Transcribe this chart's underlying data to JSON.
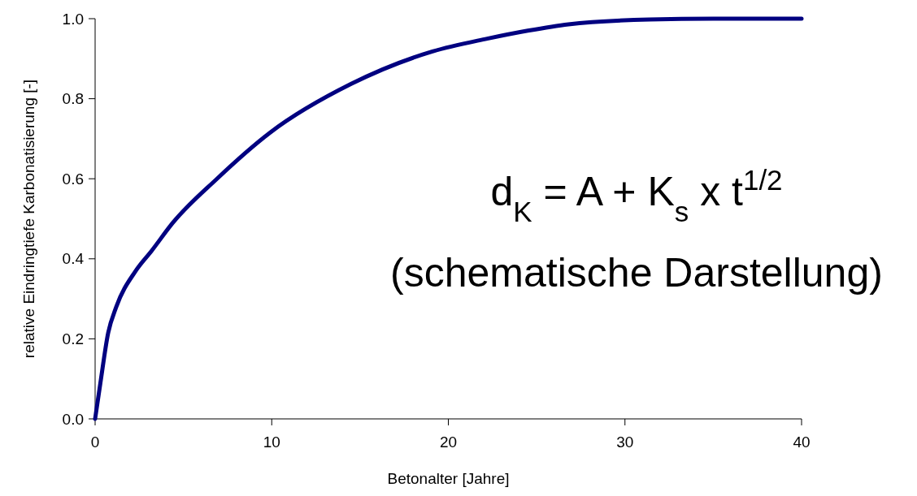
{
  "chart_data": {
    "type": "line",
    "xlabel": "Betonalter [Jahre]",
    "ylabel": "relative Eindringtiefe Karbonatisierung [-]",
    "xlim": [
      0,
      40
    ],
    "ylim": [
      0,
      1
    ],
    "xticks": [
      0,
      10,
      20,
      30,
      40
    ],
    "yticks": [
      {
        "value": 0,
        "label": "0.0"
      },
      {
        "value": 0.2,
        "label": "0.2"
      },
      {
        "value": 0.4,
        "label": "0.4"
      },
      {
        "value": 0.6,
        "label": "0.6"
      },
      {
        "value": 0.8,
        "label": "0.8"
      },
      {
        "value": 1,
        "label": "1.0"
      }
    ],
    "grid": false,
    "marker": "none",
    "line_style": "solid",
    "annotations": [
      "d$_{K}$ = A + K$_{s}$ x t$^{1/2}$",
      "(schematische Darstellung)"
    ],
    "x": [
      0,
      0.3,
      0.74,
      1.2,
      2.3,
      3.2,
      4.4,
      6.9,
      9.9,
      14.5,
      19.1,
      22.2,
      24.5,
      26.8,
      31.4,
      35,
      40
    ],
    "series": [
      {
        "color": "#000080",
        "values": [
          0,
          0.09,
          0.215,
          0.28,
          0.37,
          0.42,
          0.49,
          0.6,
          0.715,
          0.837,
          0.918,
          0.95,
          0.97,
          0.986,
          0.998,
          1.0,
          1.0
        ]
      }
    ]
  }
}
